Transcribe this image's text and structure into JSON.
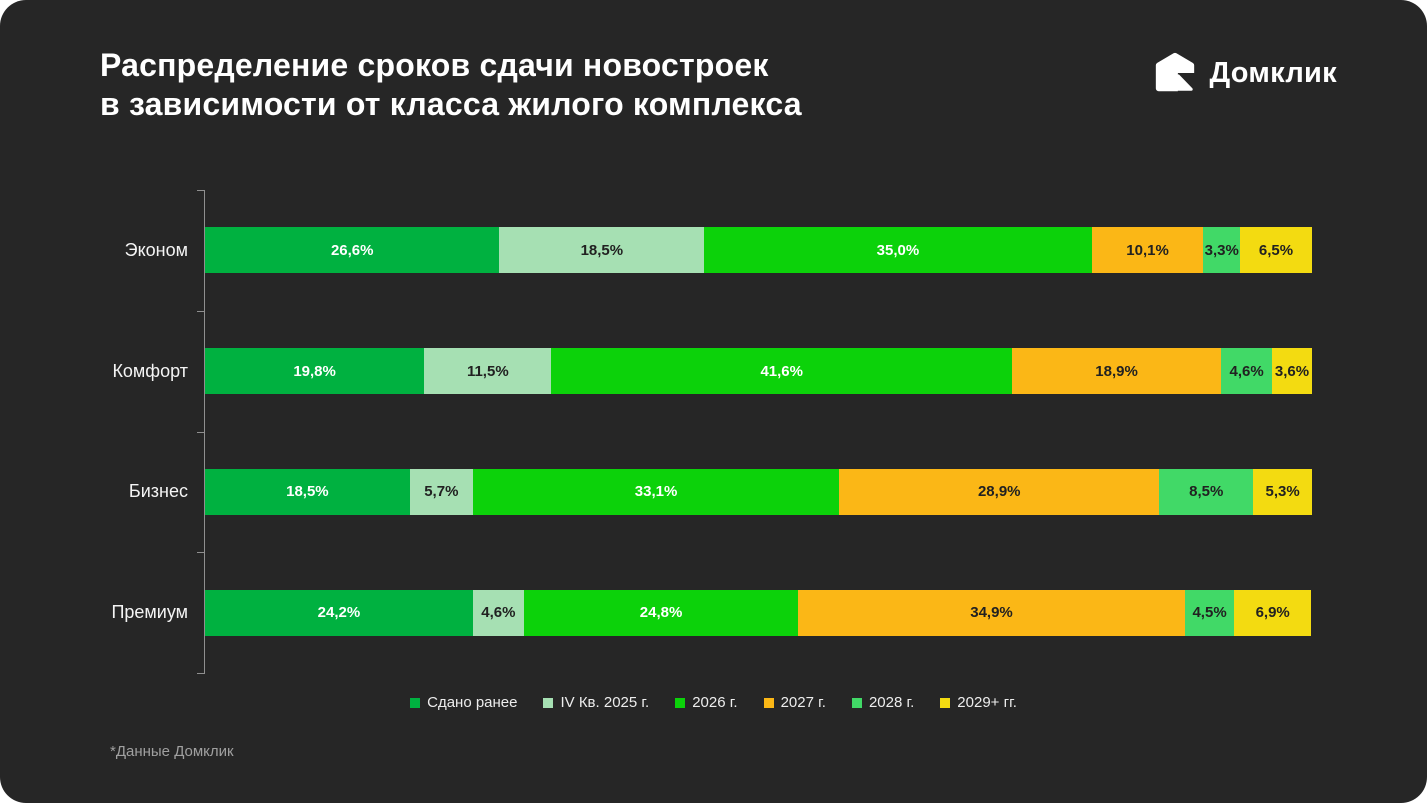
{
  "title": {
    "line1": "Распределение сроков сдачи новостроек",
    "line2": "в зависимости от класса жилого комплекса"
  },
  "logo": {
    "text": "Домклик",
    "icon": "domclick-house-icon"
  },
  "footnote": "*Данные Домклик",
  "colors": {
    "panel_bg": "#262626",
    "title_text": "#FFFFFF",
    "axis": "#8F8F8F",
    "legend_text": "#EDEDED",
    "footnote_text": "#A0A0A0",
    "label_on_dark_segment": "#FFFFFF",
    "label_on_light_segment": "#212121"
  },
  "chart_data": {
    "type": "bar",
    "orientation": "horizontal",
    "stacked": true,
    "grid": false,
    "legend_position": "bottom",
    "xlim": [
      0,
      100
    ],
    "categories": [
      "Эконом",
      "Комфорт",
      "Бизнес",
      "Премиум"
    ],
    "series": [
      {
        "name": "Сдано ранее",
        "color": "#00B140",
        "label_color": "#FFFFFF",
        "values": [
          26.6,
          19.8,
          18.5,
          24.2
        ],
        "labels": [
          "26,6%",
          "19,8%",
          "18,5%",
          "24,2%"
        ]
      },
      {
        "name": "IV Кв. 2025 г.",
        "color": "#A6E0B3",
        "label_color": "#212121",
        "values": [
          18.5,
          11.5,
          5.7,
          4.6
        ],
        "labels": [
          "18,5%",
          "11,5%",
          "5,7%",
          "4,6%"
        ]
      },
      {
        "name": "2026 г.",
        "color": "#0CD20A",
        "label_color": "#FFFFFF",
        "values": [
          35.0,
          41.6,
          33.1,
          24.8
        ],
        "labels": [
          "35,0%",
          "41,6%",
          "33,1%",
          "24,8%"
        ]
      },
      {
        "name": "2027 г.",
        "color": "#FBB716",
        "label_color": "#212121",
        "values": [
          10.1,
          18.9,
          28.9,
          34.9
        ],
        "labels": [
          "10,1%",
          "18,9%",
          "28,9%",
          "34,9%"
        ]
      },
      {
        "name": "2028 г.",
        "color": "#41D967",
        "label_color": "#212121",
        "values": [
          3.3,
          4.6,
          8.5,
          4.5
        ],
        "labels": [
          "3,3%",
          "4,6%",
          "8,5%",
          "4,5%"
        ]
      },
      {
        "name": "2029+ гг.",
        "color": "#F3DB11",
        "label_color": "#212121",
        "values": [
          6.5,
          3.6,
          5.3,
          6.9
        ],
        "labels": [
          "6,5%",
          "3,6%",
          "5,3%",
          "6,9%"
        ]
      }
    ]
  }
}
